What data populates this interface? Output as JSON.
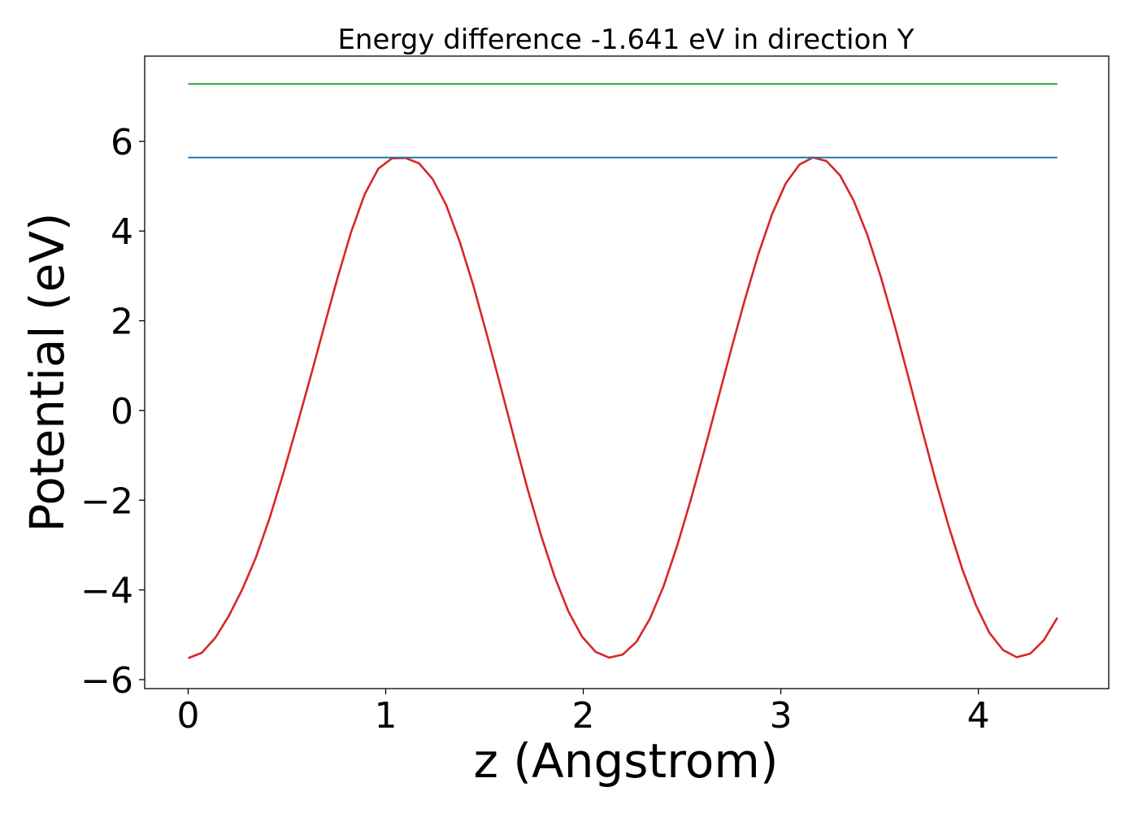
{
  "chart_data": {
    "type": "line",
    "title": "Energy difference -1.641 eV in direction Y",
    "xlabel": "z (Angstrom)",
    "ylabel": "Potential (eV)",
    "xlim": [
      -0.22,
      4.66
    ],
    "ylim": [
      -6.2,
      7.9
    ],
    "xticks": [
      0,
      1,
      2,
      3,
      4
    ],
    "xtick_labels": [
      "0",
      "1",
      "2",
      "3",
      "4"
    ],
    "yticks": [
      -6,
      -4,
      -2,
      0,
      2,
      4,
      6
    ],
    "ytick_labels": [
      "−6",
      "−4",
      "−2",
      "0",
      "2",
      "4",
      "6"
    ],
    "grid": false,
    "legend": "none",
    "series": [
      {
        "color": "#d62728",
        "x": [
          0.0,
          0.0688,
          0.1375,
          0.2063,
          0.275,
          0.3438,
          0.4125,
          0.4813,
          0.55,
          0.6188,
          0.6875,
          0.7563,
          0.825,
          0.8938,
          0.9625,
          1.0313,
          1.1,
          1.1688,
          1.2375,
          1.3063,
          1.375,
          1.4438,
          1.5125,
          1.5813,
          1.65,
          1.7188,
          1.7875,
          1.8563,
          1.925,
          1.9938,
          2.0625,
          2.1313,
          2.2,
          2.2688,
          2.3375,
          2.4063,
          2.475,
          2.5438,
          2.6125,
          2.6813,
          2.75,
          2.8188,
          2.8875,
          2.9563,
          3.025,
          3.0938,
          3.1625,
          3.2313,
          3.3,
          3.3688,
          3.4375,
          3.5063,
          3.575,
          3.6438,
          3.7125,
          3.7813,
          3.85,
          3.9188,
          3.9875,
          4.0563,
          4.125,
          4.1938,
          4.2625,
          4.3313,
          4.4
        ],
        "y": [
          -5.52,
          -5.402,
          -5.068,
          -4.576,
          -3.98,
          -3.268,
          -2.4,
          -1.41,
          -0.352,
          0.742,
          1.86,
          2.96,
          3.98,
          4.82,
          5.39,
          5.62,
          5.63,
          5.51,
          5.16,
          4.58,
          3.76,
          2.78,
          1.68,
          0.54,
          -0.62,
          -1.76,
          -2.8,
          -3.72,
          -4.48,
          -5.04,
          -5.38,
          -5.51,
          -5.44,
          -5.16,
          -4.64,
          -3.92,
          -3.02,
          -2.0,
          -0.9,
          0.24,
          1.38,
          2.48,
          3.5,
          4.38,
          5.06,
          5.48,
          5.64,
          5.56,
          5.24,
          4.68,
          3.92,
          2.98,
          1.92,
          0.78,
          -0.38,
          -1.52,
          -2.58,
          -3.54,
          -4.34,
          -4.96,
          -5.34,
          -5.5,
          -5.42,
          -5.12,
          -4.62
        ],
        "line_style": "solid"
      },
      {
        "color": "#1f77b4",
        "x": [
          0.0,
          4.4
        ],
        "y": [
          5.64,
          5.64
        ],
        "line_style": "solid"
      },
      {
        "color": "#2ca02c",
        "x": [
          0.0,
          4.4
        ],
        "y": [
          7.28,
          7.28
        ],
        "line_style": "solid"
      }
    ]
  }
}
